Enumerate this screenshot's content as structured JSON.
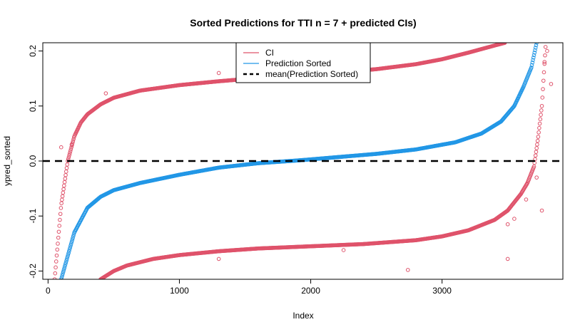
{
  "chart_data": {
    "type": "scatter",
    "title": "Sorted Predictions for TTI n =  7  + predicted CIs)",
    "xlabel": "Index",
    "ylabel": "ypred_sorted",
    "xlim": [
      -40,
      3920
    ],
    "ylim": [
      -0.215,
      0.215
    ],
    "x_ticks": [
      0,
      1000,
      2000,
      3000
    ],
    "y_ticks": [
      -0.2,
      -0.1,
      0.0,
      0.1,
      0.2
    ],
    "x_tick_labels": [
      "0",
      "1000",
      "2000",
      "3000"
    ],
    "y_tick_labels": [
      "-0.2",
      "-0.1",
      "0.0",
      "0.1",
      "0.2"
    ],
    "grid": false,
    "legend_position": "top-center",
    "legend": [
      {
        "label": "CI",
        "style": "line",
        "color": "#DF536B"
      },
      {
        "label": "Prediction Sorted",
        "style": "line",
        "color": "#2297E6"
      },
      {
        "label": "mean(Prediction Sorted)",
        "style": "dashed",
        "color": "#000000"
      }
    ],
    "mean_line": {
      "y": 0.0,
      "style": "dashed",
      "color": "#000000"
    },
    "series": [
      {
        "role": "prediction_sorted",
        "color": "#2297E6",
        "marker": "open-circle",
        "x": [
          100,
          200,
          300,
          400,
          500,
          700,
          1000,
          1300,
          1600,
          1900,
          2200,
          2500,
          2800,
          3100,
          3300,
          3450,
          3550,
          3620,
          3680,
          3720
        ],
        "y": [
          -0.215,
          -0.13,
          -0.085,
          -0.065,
          -0.053,
          -0.04,
          -0.025,
          -0.012,
          -0.004,
          0.001,
          0.007,
          0.013,
          0.021,
          0.034,
          0.05,
          0.072,
          0.1,
          0.135,
          0.17,
          0.215
        ]
      },
      {
        "role": "ci_upper",
        "color": "#DF536B",
        "marker": "open-circle",
        "x": [
          50,
          100,
          150,
          200,
          250,
          300,
          400,
          500,
          700,
          1000,
          1300,
          1600,
          1900,
          2200,
          2500,
          2800,
          3000,
          3200,
          3400,
          3480
        ],
        "y": [
          -0.215,
          -0.08,
          0.0,
          0.045,
          0.07,
          0.085,
          0.103,
          0.115,
          0.128,
          0.138,
          0.145,
          0.151,
          0.156,
          0.161,
          0.167,
          0.176,
          0.185,
          0.197,
          0.21,
          0.215
        ]
      },
      {
        "role": "ci_lower",
        "color": "#DF536B",
        "marker": "open-circle",
        "x": [
          400,
          500,
          600,
          800,
          1000,
          1300,
          1600,
          2000,
          2400,
          2800,
          3000,
          3200,
          3400,
          3500,
          3600,
          3650,
          3700,
          3730,
          3760,
          3790
        ],
        "y": [
          -0.215,
          -0.2,
          -0.19,
          -0.178,
          -0.171,
          -0.164,
          -0.159,
          -0.155,
          -0.151,
          -0.144,
          -0.137,
          -0.126,
          -0.107,
          -0.09,
          -0.06,
          -0.04,
          -0.01,
          0.04,
          0.1,
          0.215
        ]
      }
    ],
    "outliers": [
      {
        "x": 100,
        "y": 0.025,
        "color": "#DF536B"
      },
      {
        "x": 180,
        "y": 0.03,
        "color": "#DF536B"
      },
      {
        "x": 440,
        "y": 0.123,
        "color": "#DF536B"
      },
      {
        "x": 1300,
        "y": 0.16,
        "color": "#DF536B"
      },
      {
        "x": 1300,
        "y": -0.178,
        "color": "#DF536B"
      },
      {
        "x": 2250,
        "y": -0.162,
        "color": "#DF536B"
      },
      {
        "x": 2740,
        "y": -0.198,
        "color": "#DF536B"
      },
      {
        "x": 3500,
        "y": -0.178,
        "color": "#DF536B"
      },
      {
        "x": 3500,
        "y": -0.115,
        "color": "#DF536B"
      },
      {
        "x": 3550,
        "y": -0.105,
        "color": "#DF536B"
      },
      {
        "x": 3640,
        "y": -0.07,
        "color": "#DF536B"
      },
      {
        "x": 3720,
        "y": -0.03,
        "color": "#DF536B"
      },
      {
        "x": 3760,
        "y": -0.09,
        "color": "#DF536B"
      },
      {
        "x": 3780,
        "y": 0.18,
        "color": "#DF536B"
      },
      {
        "x": 3800,
        "y": 0.2,
        "color": "#DF536B"
      },
      {
        "x": 3830,
        "y": 0.14,
        "color": "#DF536B"
      }
    ]
  }
}
